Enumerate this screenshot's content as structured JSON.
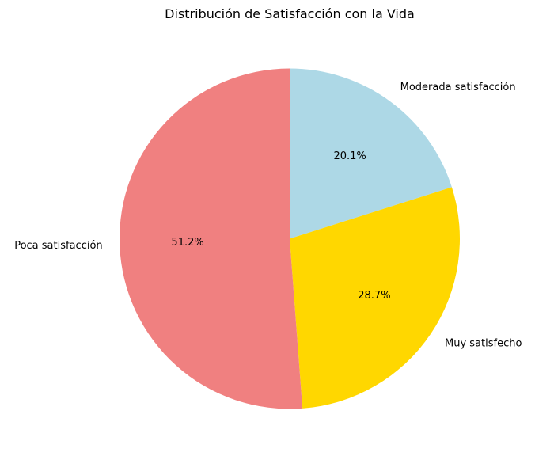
{
  "chart_data": {
    "type": "pie",
    "title": "Distribución de Satisfacción con la Vida",
    "categories": [
      "Moderada satisfacción",
      "Muy satisfecho",
      "Poca satisfacción"
    ],
    "values": [
      20.1,
      28.7,
      51.2
    ],
    "percent_labels": [
      "20.1%",
      "28.7%",
      "51.2%"
    ],
    "colors": [
      "#add8e6",
      "#ffd700",
      "#f08080"
    ],
    "start_angle_deg": 90,
    "direction": "clockwise",
    "legend": "none"
  }
}
